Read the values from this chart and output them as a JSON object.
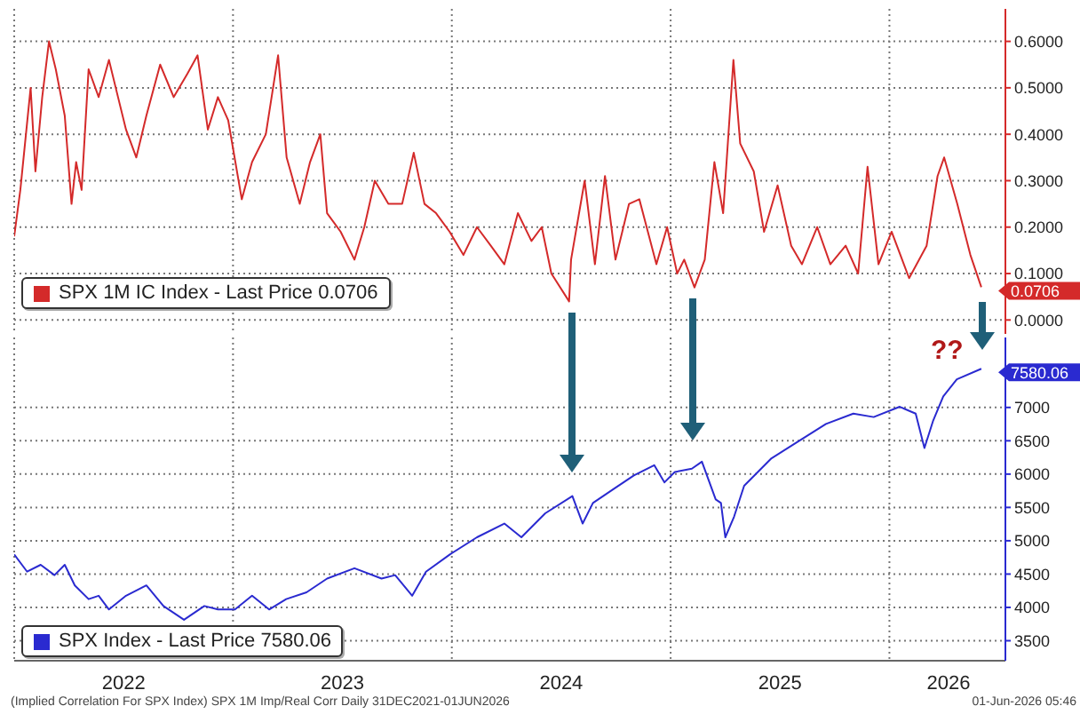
{
  "chart_data": [
    {
      "type": "line",
      "xlim": [
        2022,
        2026.53
      ],
      "xticks": [
        {
          "value": 2022,
          "label": null
        },
        {
          "value": 2023,
          "label": null
        },
        {
          "value": 2024,
          "label": null
        },
        {
          "value": 2025,
          "label": null
        },
        {
          "value": 2026,
          "label": null
        }
      ],
      "ylim": [
        -0.03,
        0.67
      ],
      "yticks": [
        {
          "value": 0,
          "label": "0.0000"
        },
        {
          "value": 0.1,
          "label": "0.1000"
        },
        {
          "value": 0.2,
          "label": "0.2000"
        },
        {
          "value": 0.3,
          "label": "0.3000"
        },
        {
          "value": 0.4,
          "label": "0.4000"
        },
        {
          "value": 0.5,
          "label": "0.5000"
        },
        {
          "value": 0.6,
          "label": "0.6000"
        }
      ],
      "grid": true,
      "legend": "bottom left",
      "tick_labels": "y",
      "series": [
        {
          "name": "SPX 1M IC Index - Last Price 0.0706",
          "color": "#d42a2a",
          "x": [
            2022,
            2022.028,
            2022.075,
            2022.097,
            2022.128,
            2022.159,
            2022.19,
            2022.231,
            2022.262,
            2022.283,
            2022.308,
            2022.34,
            2022.386,
            2022.433,
            2022.464,
            2022.511,
            2022.558,
            2022.604,
            2022.667,
            2022.729,
            2022.791,
            2022.838,
            2022.885,
            2022.931,
            2022.978,
            2023.04,
            2023.087,
            2023.15,
            2023.206,
            2023.245,
            2023.305,
            2023.352,
            2023.399,
            2023.43,
            2023.492,
            2023.555,
            2023.6,
            2023.648,
            2023.71,
            2023.773,
            2023.826,
            2023.875,
            2023.928,
            2023.99,
            2024.053,
            2024.115,
            2024.178,
            2024.24,
            2024.302,
            2024.364,
            2024.411,
            2024.455,
            2024.536,
            2024.545,
            2024.607,
            2024.654,
            2024.7,
            2024.748,
            2024.81,
            2024.857,
            2024.935,
            2024.984,
            2025.03,
            2025.062,
            2025.109,
            2025.156,
            2025.2,
            2025.24,
            2025.287,
            2025.318,
            2025.38,
            2025.427,
            2025.489,
            2025.551,
            2025.6,
            2025.67,
            2025.73,
            2025.8,
            2025.857,
            2025.9,
            2025.95,
            2026.01,
            2026.09,
            2026.17,
            2026.22,
            2026.25,
            2026.31,
            2026.37,
            2026.42
          ],
          "values": [
            0.18,
            0.28,
            0.5,
            0.32,
            0.48,
            0.6,
            0.54,
            0.44,
            0.25,
            0.34,
            0.28,
            0.54,
            0.48,
            0.56,
            0.5,
            0.41,
            0.35,
            0.44,
            0.55,
            0.48,
            0.53,
            0.57,
            0.41,
            0.48,
            0.43,
            0.26,
            0.34,
            0.4,
            0.57,
            0.35,
            0.25,
            0.34,
            0.4,
            0.23,
            0.19,
            0.13,
            0.2,
            0.3,
            0.25,
            0.25,
            0.36,
            0.25,
            0.23,
            0.19,
            0.14,
            0.2,
            0.16,
            0.12,
            0.23,
            0.17,
            0.2,
            0.1,
            0.04,
            0.13,
            0.3,
            0.12,
            0.31,
            0.13,
            0.25,
            0.26,
            0.12,
            0.2,
            0.1,
            0.13,
            0.07,
            0.13,
            0.34,
            0.23,
            0.56,
            0.38,
            0.32,
            0.19,
            0.29,
            0.16,
            0.12,
            0.2,
            0.12,
            0.16,
            0.1,
            0.33,
            0.12,
            0.19,
            0.09,
            0.16,
            0.31,
            0.35,
            0.25,
            0.14,
            0.0706
          ],
          "value_labels": [
            null,
            null,
            null,
            null,
            null,
            null,
            null,
            null,
            null,
            null,
            null,
            null,
            null,
            null,
            null,
            null,
            null,
            null,
            null,
            null,
            null,
            null,
            null,
            null,
            null,
            null,
            null,
            null,
            null,
            null,
            null,
            null,
            null,
            null,
            null,
            null,
            null,
            null,
            null,
            null,
            null,
            null,
            null,
            null,
            null,
            null,
            null,
            null,
            null,
            null,
            null,
            null,
            null,
            null,
            null,
            null,
            null,
            null,
            null,
            null,
            null,
            null,
            null,
            null,
            null,
            null,
            null,
            null,
            null,
            null,
            null,
            null,
            null,
            null,
            null,
            null,
            null,
            null,
            null,
            null,
            null,
            null,
            null,
            null,
            null,
            null,
            null,
            null,
            "0.0706"
          ]
        }
      ]
    },
    {
      "type": "line",
      "xlim": [
        2022,
        2026.53
      ],
      "xticks": [
        {
          "value": 2022,
          "label": null
        },
        {
          "value": 2022.5,
          "label": "2022"
        },
        {
          "value": 2023,
          "label": null
        },
        {
          "value": 2023.5,
          "label": "2023"
        },
        {
          "value": 2024,
          "label": null
        },
        {
          "value": 2024.5,
          "label": "2024"
        },
        {
          "value": 2025,
          "label": null
        },
        {
          "value": 2025.5,
          "label": "2025"
        },
        {
          "value": 2026,
          "label": null
        },
        {
          "value": 2026.27,
          "label": "2026"
        }
      ],
      "ylim": [
        3200,
        8050
      ],
      "yticks": [
        3500,
        4000,
        4500,
        5000,
        5500,
        6000,
        6500,
        7000
      ],
      "grid": true,
      "legend": "bottom left",
      "annotations": [
        "??",
        "(Implied Correlation For SPX Index) SPX 1M Imp/Real Corr Daily 31DEC2021-01JUN2026",
        "01-Jun-2026 05:46"
      ],
      "series": [
        {
          "name": "SPX Index - Last Price 7580.06",
          "color": "#2a2ad0",
          "x": [
            2022,
            2022.059,
            2022.121,
            2022.184,
            2022.231,
            2022.277,
            2022.34,
            2022.386,
            2022.433,
            2022.511,
            2022.604,
            2022.682,
            2022.776,
            2022.869,
            2022.931,
            2023.009,
            2023.087,
            2023.165,
            2023.243,
            2023.336,
            2023.43,
            2023.555,
            2023.679,
            2023.741,
            2023.819,
            2023.882,
            2023.991,
            2024.115,
            2024.24,
            2024.318,
            2024.427,
            2024.551,
            2024.598,
            2024.645,
            2024.738,
            2024.832,
            2024.925,
            2024.972,
            2025.019,
            2025.097,
            2025.143,
            2025.206,
            2025.23,
            2025.25,
            2025.29,
            2025.336,
            2025.461,
            2025.586,
            2025.71,
            2025.835,
            2025.928,
            2026.047,
            2026.12,
            2026.16,
            2026.2,
            2026.246,
            2026.308,
            2026.42
          ],
          "values": [
            4794,
            4536,
            4639,
            4484,
            4639,
            4330,
            4124,
            4175,
            3969,
            4175,
            4330,
            4021,
            3814,
            4021,
            3969,
            3969,
            4175,
            3969,
            4124,
            4226,
            4433,
            4588,
            4433,
            4484,
            4175,
            4536,
            4794,
            5052,
            5258,
            5052,
            5412,
            5670,
            5258,
            5567,
            5773,
            5979,
            6134,
            5876,
            6031,
            6082,
            6186,
            5619,
            5567,
            5052,
            5361,
            5825,
            6237,
            6495,
            6753,
            6907,
            6856,
            7010,
            6907,
            6392,
            6804,
            7165,
            7423,
            7580.06
          ],
          "value_labels": [
            null,
            null,
            null,
            null,
            null,
            null,
            null,
            null,
            null,
            null,
            null,
            null,
            null,
            null,
            null,
            null,
            null,
            null,
            null,
            null,
            null,
            null,
            null,
            null,
            null,
            null,
            null,
            null,
            null,
            null,
            null,
            null,
            null,
            null,
            null,
            null,
            null,
            null,
            null,
            null,
            null,
            null,
            null,
            null,
            null,
            null,
            null,
            null,
            null,
            null,
            null,
            null,
            null,
            null,
            null,
            null,
            null,
            "7580.06"
          ]
        }
      ]
    }
  ]
}
